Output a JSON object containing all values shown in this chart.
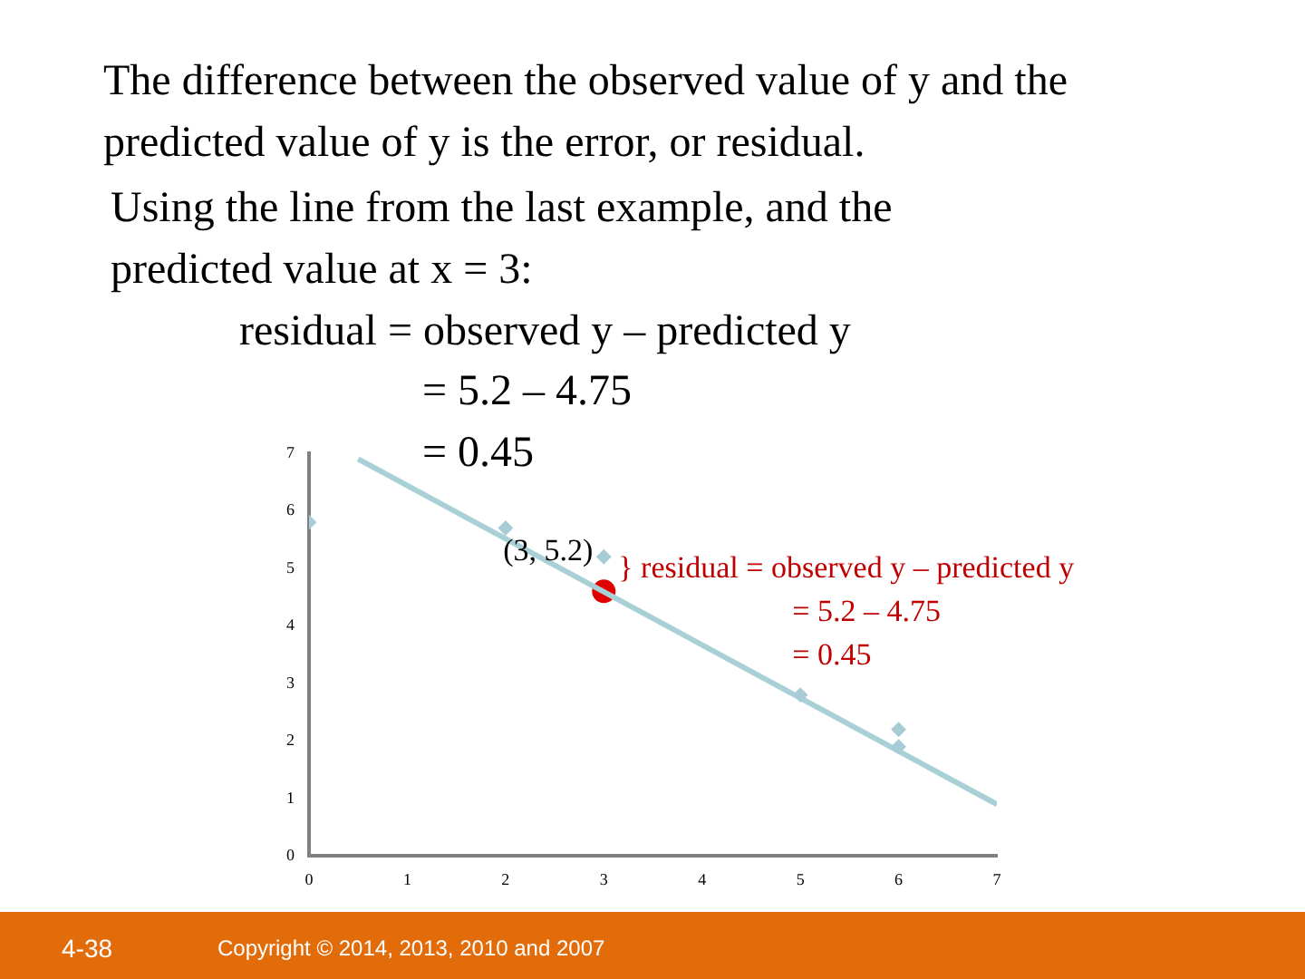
{
  "chart_data": {
    "type": "scatter",
    "title": "The difference between the observed value of y and the predicted value of y is the error, or residual.",
    "subtitle": "Using the line from the last example, and the predicted value at x = 3:",
    "annotations": [
      "residual = observed y – predicted y",
      "= 5.2 – 4.75",
      "= 0.45",
      "4-38",
      "Copyright © 2014, 2013, 2010 and 2007",
      {
        "text": "(3, 5.2)",
        "x": 3,
        "y": 5.2
      },
      {
        "text": "} residual = observed y – predicted y\n= 5.2 – 4.75\n= 0.45",
        "x": 3,
        "y": 4.9
      }
    ],
    "series": [
      {
        "color": "#a8ccd6",
        "x": [
          0,
          2,
          3,
          5,
          6,
          6
        ],
        "values": [
          5.8,
          5.7,
          5.2,
          2.8,
          2.2,
          1.9
        ],
        "marker": "diamond"
      },
      {
        "type": "line",
        "color": "#a9d0d6",
        "x": [
          0.5,
          7
        ],
        "values": [
          6.9,
          0.9
        ],
        "marker": "none"
      },
      {
        "type": "scatter",
        "color": "#e00000",
        "x": [
          3
        ],
        "values": [
          4.6
        ],
        "marker": "circle"
      }
    ],
    "xlim": [
      0,
      7
    ],
    "xticks": [
      0,
      1,
      2,
      3,
      4,
      5,
      6,
      7
    ],
    "ylim": [
      0,
      7
    ],
    "yticks": [
      0,
      1,
      2,
      3,
      4,
      5,
      6,
      7
    ],
    "grid": false,
    "legend": false
  }
}
